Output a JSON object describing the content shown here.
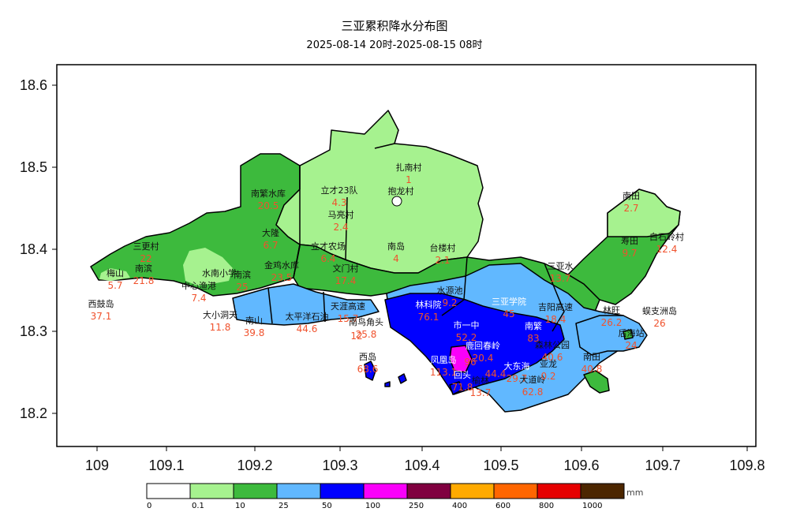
{
  "title": "三亚累积降水分布图",
  "subtitle": "2025-08-14 20时-2025-08-15 08时",
  "x_ticks": [
    "109",
    "109.1",
    "109.2",
    "109.3",
    "109.4",
    "109.5",
    "109.6",
    "109.7",
    "109.8"
  ],
  "y_ticks": [
    "18.6",
    "18.5",
    "18.4",
    "18.3",
    "18.2"
  ],
  "legend": {
    "unit": "mm",
    "breaks": [
      "0",
      "0.1",
      "10",
      "25",
      "50",
      "100",
      "250",
      "400",
      "600",
      "800",
      "1000"
    ],
    "colors": [
      "#ffffff",
      "#a6f28f",
      "#3dba3d",
      "#61b8ff",
      "#0000ff",
      "#fa00fa",
      "#800040",
      "#ffaa00",
      "#ff6600",
      "#e60000",
      "#4c2600"
    ]
  },
  "stations": [
    {
      "name": "南繁水库",
      "value": "20.5"
    },
    {
      "name": "立才23队",
      "value": "4.3"
    },
    {
      "name": "扎南村",
      "value": "1"
    },
    {
      "name": "抱龙村",
      "value": ""
    },
    {
      "name": "马亮村",
      "value": "2.4"
    },
    {
      "name": "大隆",
      "value": "6.7"
    },
    {
      "name": "立才农场",
      "value": "6.4"
    },
    {
      "name": "南岛",
      "value": "4"
    },
    {
      "name": "台楼村",
      "value": "2.1"
    },
    {
      "name": "南田",
      "value": "2.7"
    },
    {
      "name": "寿田",
      "value": "9.7"
    },
    {
      "name": "白石岭村",
      "value": "12.4"
    },
    {
      "name": "三更村",
      "value": "22"
    },
    {
      "name": "梅山",
      "value": "5.7"
    },
    {
      "name": "南滨",
      "value": "21.8"
    },
    {
      "name": "水南小学",
      "value": ""
    },
    {
      "name": "南滨",
      "value": "25"
    },
    {
      "name": "金鸡水库",
      "value": "23.5"
    },
    {
      "name": "文门村",
      "value": "17.4"
    },
    {
      "name": "中心渔港",
      "value": "7.4"
    },
    {
      "name": "西鼓岛",
      "value": "37.1"
    },
    {
      "name": "水源池",
      "value": "9.2"
    },
    {
      "name": "三亚水",
      "value": "13.7"
    },
    {
      "name": "林科院",
      "value": "76.1"
    },
    {
      "name": "三亚学院",
      "value": "45"
    },
    {
      "name": "吉阳高速",
      "value": "18.4"
    },
    {
      "name": "天涯高速",
      "value": "15.7"
    },
    {
      "name": "大小洞天",
      "value": "11.8"
    },
    {
      "name": "南山",
      "value": "39.8"
    },
    {
      "name": "太平洋石油",
      "value": "44.6"
    },
    {
      "name": "南鸟角头",
      "value": "25.8"
    },
    {
      "name": "",
      "value": "12"
    },
    {
      "name": "林旺",
      "value": "26.2"
    },
    {
      "name": "蜈支洲岛",
      "value": "26"
    },
    {
      "name": "后海站",
      "value": "24"
    },
    {
      "name": "市一中",
      "value": "52.2"
    },
    {
      "name": "南繁",
      "value": "83"
    },
    {
      "name": "森林公园",
      "value": "40.6"
    },
    {
      "name": "南田",
      "value": "40.8"
    },
    {
      "name": "鹿回春岭",
      "value": "20.4"
    },
    {
      "name": "西岛",
      "value": "68.6"
    },
    {
      "name": "凤凰岛",
      "value": "113.1"
    },
    {
      "name": "",
      "value": "96"
    },
    {
      "name": "回头",
      "value": "71.8"
    },
    {
      "name": "榆林",
      "value": "13.7"
    },
    {
      "name": "",
      "value": "44.4"
    },
    {
      "name": "大东海",
      "value": "29.7"
    },
    {
      "name": "大道岭",
      "value": "62.8"
    },
    {
      "name": "亚龙",
      "value": "0.2"
    }
  ]
}
